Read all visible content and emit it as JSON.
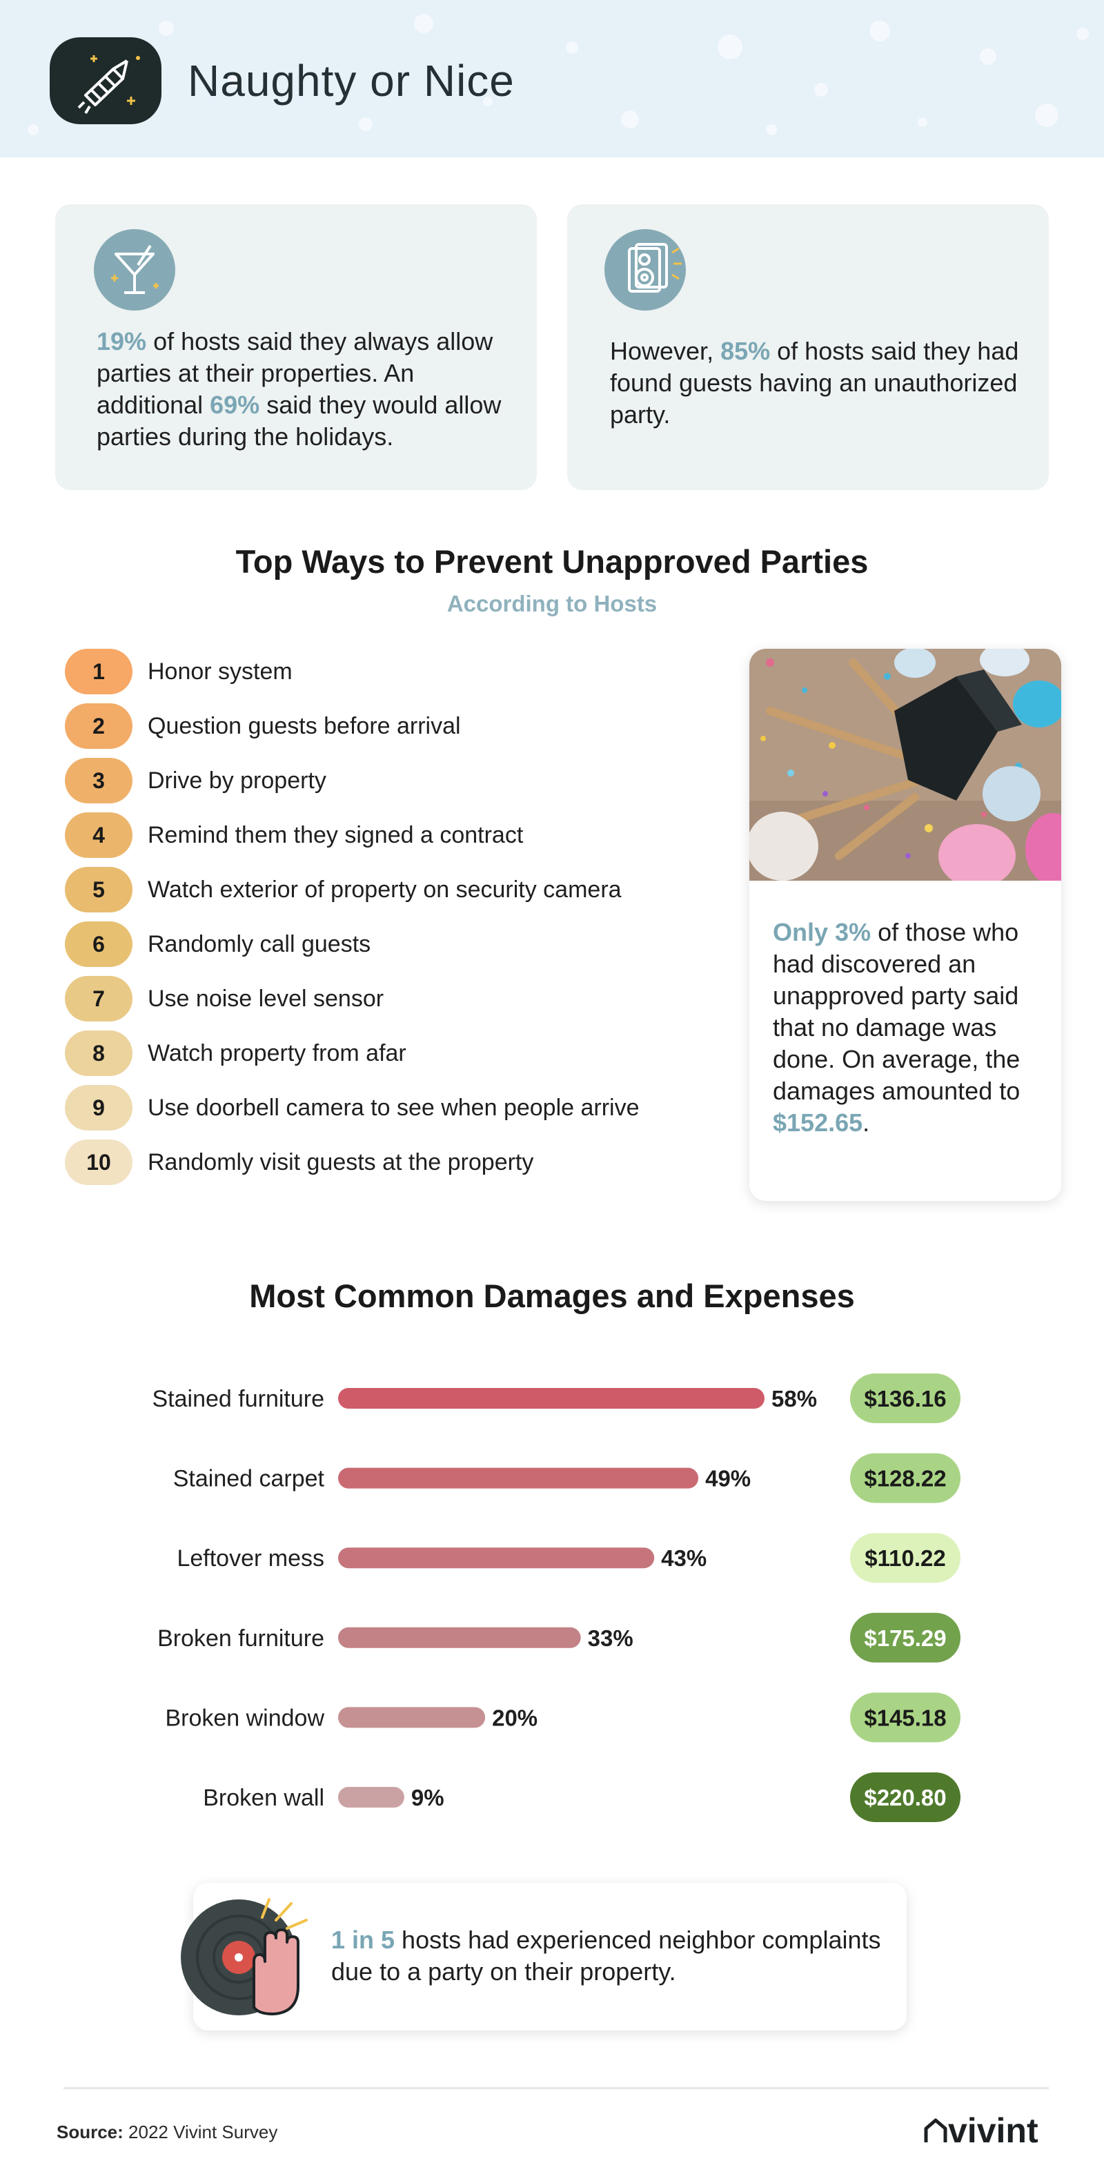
{
  "header": {
    "title": "Naughty or Nice",
    "logo_icon": "firework-rocket-icon",
    "background": "#e6f1f8"
  },
  "stats": [
    {
      "icon": "martini-glass-icon",
      "parts": [
        {
          "text": "19%",
          "hl": true
        },
        {
          "text": " of hosts said they always allow parties at their properties. An additional ",
          "hl": false
        },
        {
          "text": "69%",
          "hl": true
        },
        {
          "text": " said they would allow parties during the holidays.",
          "hl": false
        }
      ]
    },
    {
      "icon": "speaker-icon",
      "parts": [
        {
          "text": "However, ",
          "hl": false
        },
        {
          "text": "85%",
          "hl": true
        },
        {
          "text": " of hosts said they had found guests having an unauthorized party.",
          "hl": false
        }
      ]
    }
  ],
  "prevent": {
    "title": "Top Ways to Prevent Unapproved Parties",
    "subtitle": "According to Hosts",
    "items": [
      {
        "rank": "1",
        "label": "Honor system",
        "color": "#f7a766"
      },
      {
        "rank": "2",
        "label": "Question guests before arrival",
        "color": "#f3ab68"
      },
      {
        "rank": "3",
        "label": "Drive by property",
        "color": "#efb16a"
      },
      {
        "rank": "4",
        "label": "Remind them they signed a contract",
        "color": "#ebb66c"
      },
      {
        "rank": "5",
        "label": "Watch exterior of property on security camera",
        "color": "#e8bb6e"
      },
      {
        "rank": "6",
        "label": "Randomly call guests",
        "color": "#e7c072"
      },
      {
        "rank": "7",
        "label": "Use noise level sensor",
        "color": "#e9c986"
      },
      {
        "rank": "8",
        "label": "Watch property from afar",
        "color": "#ecd39c"
      },
      {
        "rank": "9",
        "label": "Use doorbell camera to see when people arrive",
        "color": "#efdbb0"
      },
      {
        "rank": "10",
        "label": "Randomly visit guests at the property",
        "color": "#f2e2c2"
      }
    ]
  },
  "photo_card": {
    "image": "party-mess-photo",
    "parts": [
      {
        "text": "Only 3%",
        "hl": true
      },
      {
        "text": " of those who had discovered an unapproved party said that no damage was done. On average, the damages amounted to ",
        "hl": false
      },
      {
        "text": "$152.65",
        "hl": true
      },
      {
        "text": ".",
        "hl": false
      }
    ]
  },
  "chart_data": {
    "type": "bar",
    "orientation": "horizontal",
    "title": "Most Common Damages and Expenses",
    "categories": [
      "Stained furniture",
      "Stained carpet",
      "Leftover mess",
      "Broken furniture",
      "Broken window",
      "Broken wall"
    ],
    "series": [
      {
        "values": [
          58,
          49,
          43,
          33,
          20,
          9
        ],
        "labels": [
          "58%",
          "49%",
          "43%",
          "33%",
          "20%",
          "9%"
        ]
      },
      {
        "values": [
          136.16,
          128.22,
          110.22,
          175.29,
          145.18,
          220.8
        ],
        "labels": [
          "$136.16",
          "$128.22",
          "$110.22",
          "$175.29",
          "$145.18",
          "$220.80"
        ]
      }
    ],
    "bar_colors": [
      "#cf5b68",
      "#c96a73",
      "#c5757b",
      "#c28286",
      "#c69193",
      "#cba2a4"
    ],
    "cost_colors": [
      "#a9d485",
      "#a9d485",
      "#dcf2ba",
      "#72a24c",
      "#a9d485",
      "#4f7a2c"
    ],
    "cost_text_colors": [
      "#1a1a1a",
      "#1a1a1a",
      "#1a1a1a",
      "#ffffff",
      "#1a1a1a",
      "#ffffff"
    ],
    "xlim": [
      0,
      58
    ],
    "grid": false
  },
  "neighbor": {
    "icon": "record-stop-hand-icon",
    "parts": [
      {
        "text": "1 in 5",
        "hl": true
      },
      {
        "text": " hosts had experienced neighbor complaints due to a party on their property.",
        "hl": false
      }
    ]
  },
  "footer": {
    "source_label": "Source:",
    "source_text": " 2022 Vivint Survey",
    "brand": "vivint",
    "brand_icon": "house-outline-icon"
  }
}
